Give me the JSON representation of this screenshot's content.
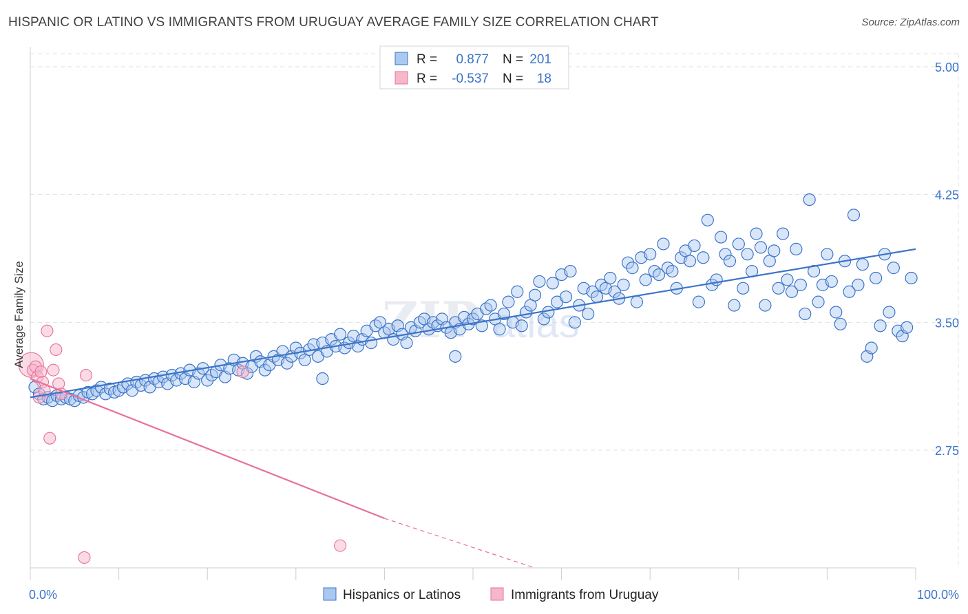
{
  "title": "HISPANIC OR LATINO VS IMMIGRANTS FROM URUGUAY AVERAGE FAMILY SIZE CORRELATION CHART",
  "source": "Source: ZipAtlas.com",
  "watermark": {
    "part1": "ZIP",
    "part2": "atlas"
  },
  "colors": {
    "blue": "#3b74c9",
    "blue_fill": "#aac8f0",
    "pink": "#e8709a",
    "pink_fill": "#f5b8cb",
    "grid": "#dde2ea"
  },
  "legend": {
    "r_label": "R =",
    "n_label": "N =",
    "rows": [
      {
        "r": "0.877",
        "n": "201",
        "color": "blue"
      },
      {
        "r": "-0.537",
        "n": "18",
        "color": "pink"
      }
    ]
  },
  "bottom_legend": [
    "Hispanics or Latinos",
    "Immigrants from Uruguay"
  ],
  "chart_data": {
    "type": "scatter",
    "xlabel": "",
    "ylabel": "Average Family Size",
    "xlim": [
      0,
      100
    ],
    "ylim": [
      2.0,
      5.1
    ],
    "x_tick_labels": [
      "0.0%",
      "100.0%"
    ],
    "y_ticks": [
      2.75,
      3.5,
      4.25,
      5.0
    ],
    "y_tick_labels": [
      "2.75",
      "3.50",
      "4.25",
      "5.00"
    ],
    "grid": true,
    "legend_position": "top-center",
    "series": [
      {
        "name": "Hispanics or Latinos",
        "color": "blue",
        "trend": {
          "x0": 0,
          "y0": 3.06,
          "x1": 100,
          "y1": 3.93
        },
        "points": [
          [
            0.5,
            3.12
          ],
          [
            1,
            3.08
          ],
          [
            1.5,
            3.05
          ],
          [
            2,
            3.06
          ],
          [
            2.5,
            3.04
          ],
          [
            3,
            3.07
          ],
          [
            3.5,
            3.05
          ],
          [
            4,
            3.06
          ],
          [
            4.5,
            3.05
          ],
          [
            5,
            3.04
          ],
          [
            5.5,
            3.07
          ],
          [
            6,
            3.06
          ],
          [
            6.5,
            3.09
          ],
          [
            7,
            3.08
          ],
          [
            7.5,
            3.1
          ],
          [
            8,
            3.12
          ],
          [
            8.5,
            3.08
          ],
          [
            9,
            3.11
          ],
          [
            9.5,
            3.09
          ],
          [
            10,
            3.1
          ],
          [
            10.5,
            3.12
          ],
          [
            11,
            3.14
          ],
          [
            11.5,
            3.1
          ],
          [
            12,
            3.15
          ],
          [
            12.5,
            3.13
          ],
          [
            13,
            3.16
          ],
          [
            13.5,
            3.12
          ],
          [
            14,
            3.17
          ],
          [
            14.5,
            3.15
          ],
          [
            15,
            3.18
          ],
          [
            15.5,
            3.14
          ],
          [
            16,
            3.19
          ],
          [
            16.5,
            3.16
          ],
          [
            17,
            3.2
          ],
          [
            17.5,
            3.17
          ],
          [
            18,
            3.22
          ],
          [
            18.5,
            3.15
          ],
          [
            19,
            3.2
          ],
          [
            19.5,
            3.23
          ],
          [
            20,
            3.16
          ],
          [
            20.5,
            3.19
          ],
          [
            21,
            3.21
          ],
          [
            21.5,
            3.25
          ],
          [
            22,
            3.18
          ],
          [
            22.5,
            3.23
          ],
          [
            23,
            3.28
          ],
          [
            23.5,
            3.22
          ],
          [
            24,
            3.26
          ],
          [
            24.5,
            3.2
          ],
          [
            25,
            3.24
          ],
          [
            25.5,
            3.3
          ],
          [
            26,
            3.27
          ],
          [
            26.5,
            3.22
          ],
          [
            27,
            3.25
          ],
          [
            27.5,
            3.3
          ],
          [
            28,
            3.28
          ],
          [
            28.5,
            3.33
          ],
          [
            29,
            3.26
          ],
          [
            29.5,
            3.3
          ],
          [
            30,
            3.35
          ],
          [
            30.5,
            3.32
          ],
          [
            31,
            3.28
          ],
          [
            31.5,
            3.34
          ],
          [
            32,
            3.37
          ],
          [
            32.5,
            3.3
          ],
          [
            33,
            3.38
          ],
          [
            33.5,
            3.33
          ],
          [
            34,
            3.4
          ],
          [
            34.5,
            3.36
          ],
          [
            35,
            3.43
          ],
          [
            35.5,
            3.35
          ],
          [
            36,
            3.38
          ],
          [
            36.5,
            3.42
          ],
          [
            37,
            3.36
          ],
          [
            37.5,
            3.4
          ],
          [
            38,
            3.45
          ],
          [
            38.5,
            3.38
          ],
          [
            39,
            3.48
          ],
          [
            39.5,
            3.5
          ],
          [
            40,
            3.44
          ],
          [
            40.5,
            3.46
          ],
          [
            41,
            3.4
          ],
          [
            41.5,
            3.48
          ],
          [
            42,
            3.43
          ],
          [
            42.5,
            3.38
          ],
          [
            43,
            3.47
          ],
          [
            43.5,
            3.45
          ],
          [
            44,
            3.5
          ],
          [
            44.5,
            3.52
          ],
          [
            45,
            3.46
          ],
          [
            45.5,
            3.5
          ],
          [
            46,
            3.48
          ],
          [
            46.5,
            3.52
          ],
          [
            47,
            3.47
          ],
          [
            47.5,
            3.44
          ],
          [
            48,
            3.5
          ],
          [
            48.5,
            3.46
          ],
          [
            49,
            3.53
          ],
          [
            49.5,
            3.49
          ],
          [
            50,
            3.52
          ],
          [
            50.5,
            3.55
          ],
          [
            51,
            3.48
          ],
          [
            51.5,
            3.58
          ],
          [
            52,
            3.6
          ],
          [
            52.5,
            3.52
          ],
          [
            53,
            3.46
          ],
          [
            53.5,
            3.55
          ],
          [
            54,
            3.62
          ],
          [
            54.5,
            3.5
          ],
          [
            55,
            3.68
          ],
          [
            55.5,
            3.48
          ],
          [
            56,
            3.56
          ],
          [
            56.5,
            3.6
          ],
          [
            57,
            3.66
          ],
          [
            57.5,
            3.74
          ],
          [
            58,
            3.52
          ],
          [
            58.5,
            3.56
          ],
          [
            59,
            3.73
          ],
          [
            59.5,
            3.62
          ],
          [
            60,
            3.78
          ],
          [
            60.5,
            3.65
          ],
          [
            61,
            3.8
          ],
          [
            61.5,
            3.5
          ],
          [
            62,
            3.6
          ],
          [
            62.5,
            3.7
          ],
          [
            63,
            3.55
          ],
          [
            63.5,
            3.68
          ],
          [
            64,
            3.65
          ],
          [
            64.5,
            3.72
          ],
          [
            65,
            3.7
          ],
          [
            65.5,
            3.76
          ],
          [
            66,
            3.68
          ],
          [
            66.5,
            3.64
          ],
          [
            67,
            3.72
          ],
          [
            67.5,
            3.85
          ],
          [
            68,
            3.82
          ],
          [
            68.5,
            3.62
          ],
          [
            69,
            3.88
          ],
          [
            69.5,
            3.75
          ],
          [
            70,
            3.9
          ],
          [
            70.5,
            3.8
          ],
          [
            71,
            3.78
          ],
          [
            71.5,
            3.96
          ],
          [
            72,
            3.82
          ],
          [
            72.5,
            3.8
          ],
          [
            73,
            3.7
          ],
          [
            73.5,
            3.88
          ],
          [
            74,
            3.92
          ],
          [
            74.5,
            3.86
          ],
          [
            75,
            3.95
          ],
          [
            75.5,
            3.62
          ],
          [
            76,
            3.88
          ],
          [
            76.5,
            4.1
          ],
          [
            77,
            3.72
          ],
          [
            77.5,
            3.75
          ],
          [
            78,
            4.0
          ],
          [
            78.5,
            3.9
          ],
          [
            79,
            3.86
          ],
          [
            79.5,
            3.6
          ],
          [
            80,
            3.96
          ],
          [
            80.5,
            3.7
          ],
          [
            81,
            3.9
          ],
          [
            81.5,
            3.8
          ],
          [
            82,
            4.02
          ],
          [
            82.5,
            3.94
          ],
          [
            83,
            3.6
          ],
          [
            83.5,
            3.86
          ],
          [
            84,
            3.92
          ],
          [
            84.5,
            3.7
          ],
          [
            85,
            4.02
          ],
          [
            85.5,
            3.75
          ],
          [
            86,
            3.68
          ],
          [
            86.5,
            3.93
          ],
          [
            87,
            3.72
          ],
          [
            87.5,
            3.55
          ],
          [
            88,
            4.22
          ],
          [
            88.5,
            3.8
          ],
          [
            89,
            3.62
          ],
          [
            89.5,
            3.72
          ],
          [
            90,
            3.9
          ],
          [
            90.5,
            3.74
          ],
          [
            91,
            3.56
          ],
          [
            91.5,
            3.49
          ],
          [
            92,
            3.86
          ],
          [
            92.5,
            3.68
          ],
          [
            93,
            4.13
          ],
          [
            93.5,
            3.72
          ],
          [
            94,
            3.84
          ],
          [
            94.5,
            3.3
          ],
          [
            95,
            3.35
          ],
          [
            95.5,
            3.76
          ],
          [
            96,
            3.48
          ],
          [
            96.5,
            3.9
          ],
          [
            97,
            3.56
          ],
          [
            97.5,
            3.82
          ],
          [
            98,
            3.45
          ],
          [
            98.5,
            3.42
          ],
          [
            99,
            3.47
          ],
          [
            99.5,
            3.76
          ],
          [
            48,
            3.3
          ],
          [
            33,
            3.17
          ]
        ]
      },
      {
        "name": "Immigrants from Uruguay",
        "color": "pink",
        "trend": {
          "x0": 0,
          "y0": 3.17,
          "x1": 40,
          "y1": 2.35,
          "dash_x1": 57,
          "dash_y1": 2.0
        },
        "points": [
          [
            0.1,
            3.25
          ],
          [
            0.3,
            3.22
          ],
          [
            0.6,
            3.24
          ],
          [
            0.8,
            3.18
          ],
          [
            1.0,
            3.06
          ],
          [
            1.2,
            3.21
          ],
          [
            1.4,
            3.15
          ],
          [
            1.6,
            3.1
          ],
          [
            1.9,
            3.45
          ],
          [
            2.2,
            2.82
          ],
          [
            2.6,
            3.22
          ],
          [
            2.9,
            3.34
          ],
          [
            3.2,
            3.14
          ],
          [
            3.5,
            3.08
          ],
          [
            6.3,
            3.19
          ],
          [
            6.1,
            2.12
          ],
          [
            24.0,
            3.21
          ],
          [
            35.0,
            2.19
          ]
        ]
      }
    ]
  }
}
